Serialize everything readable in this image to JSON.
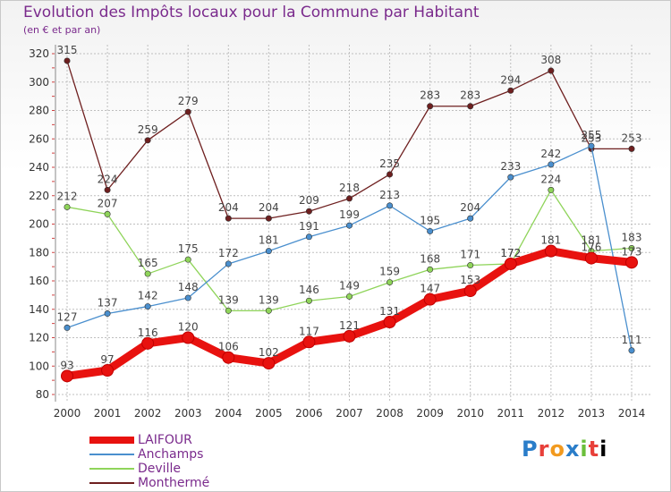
{
  "title": "Evolution des Impôts locaux pour la Commune par Habitant",
  "subtitle": "(en € et par an)",
  "logo_text": "Proxiti",
  "colors": {
    "title": "#7a2a8c",
    "grid": "#bfbfbf",
    "axis_text": "#333333",
    "label_text": "#444444"
  },
  "chart_data": {
    "type": "line",
    "categories": [
      "2000",
      "2001",
      "2002",
      "2003",
      "2004",
      "2005",
      "2006",
      "2007",
      "2008",
      "2009",
      "2010",
      "2011",
      "2012",
      "2013",
      "2014"
    ],
    "ylim": [
      80,
      320
    ],
    "yticks": [
      80,
      100,
      120,
      140,
      160,
      180,
      200,
      220,
      240,
      260,
      280,
      300,
      320
    ],
    "grid": true,
    "legend_position": "bottom-left",
    "series": [
      {
        "name": "LAIFOUR",
        "color": "#e8120f",
        "values": [
          93,
          97,
          116,
          120,
          106,
          102,
          117,
          121,
          131,
          147,
          153,
          172,
          181,
          176,
          173
        ]
      },
      {
        "name": "Anchamps",
        "color": "#4a8fce",
        "values": [
          127,
          137,
          142,
          148,
          172,
          181,
          191,
          199,
          213,
          195,
          204,
          233,
          242,
          255,
          111
        ]
      },
      {
        "name": "Deville",
        "color": "#8fd45a",
        "values": [
          212,
          207,
          165,
          175,
          139,
          139,
          146,
          149,
          159,
          168,
          171,
          172,
          224,
          181,
          183
        ]
      },
      {
        "name": "Monthermé",
        "color": "#6e1f1f",
        "values": [
          315,
          224,
          259,
          279,
          204,
          204,
          209,
          218,
          235,
          283,
          283,
          294,
          308,
          253,
          253
        ]
      }
    ]
  }
}
